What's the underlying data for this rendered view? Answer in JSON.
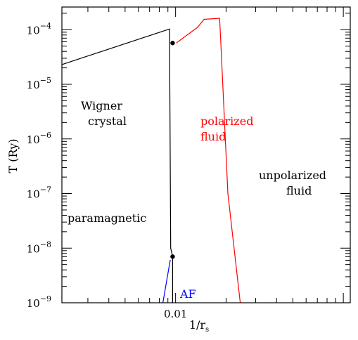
{
  "chart_data": {
    "type": "line",
    "xlabel": "1/r",
    "xlabel_sub": "s",
    "ylabel": "T (Ry)",
    "xscale": "log",
    "yscale": "log",
    "xlim": [
      0.0021,
      0.11
    ],
    "ylim": [
      1e-09,
      0.00026
    ],
    "x_tick_labels": [
      {
        "value": 0.01,
        "label": "0.01"
      }
    ],
    "y_tick_labels": [
      {
        "value": 0.0001,
        "base": "10",
        "exp": "−4"
      },
      {
        "value": 1e-05,
        "base": "10",
        "exp": "−5"
      },
      {
        "value": 1e-06,
        "base": "10",
        "exp": "−6"
      },
      {
        "value": 1e-07,
        "base": "10",
        "exp": "−7"
      },
      {
        "value": 1e-08,
        "base": "10",
        "exp": "−8"
      },
      {
        "value": 1e-09,
        "base": "10",
        "exp": "−9"
      }
    ],
    "series": [
      {
        "color": "#000000",
        "x": [
          0.0021,
          0.0092,
          0.00935,
          0.0096,
          0.0096
        ],
        "y": [
          2.3e-05,
          0.000103,
          1e-08,
          7e-09,
          1e-09
        ]
      },
      {
        "color": "#ff0000",
        "x": [
          0.0101,
          0.0135,
          0.0148,
          0.0183,
          0.0186,
          0.0205,
          0.0243
        ],
        "y": [
          5.7e-05,
          0.00011,
          0.000155,
          0.000162,
          6e-05,
          1e-07,
          1e-09
        ]
      },
      {
        "color": "#0000ff",
        "x": [
          0.0084,
          0.0093
        ],
        "y": [
          1e-09,
          6.1e-09
        ]
      }
    ],
    "points": [
      {
        "x": 0.0096,
        "y": 5.7e-05
      },
      {
        "x": 0.0096,
        "y": 7e-09
      }
    ],
    "annotations": [
      {
        "id": "wigner-1",
        "text": "Wigner",
        "color": "#000000"
      },
      {
        "id": "wigner-2",
        "text": "crystal",
        "color": "#000000"
      },
      {
        "id": "polarized-1",
        "text": "polarized",
        "color": "#ff0000"
      },
      {
        "id": "polarized-2",
        "text": "fluid",
        "color": "#ff0000"
      },
      {
        "id": "unpolarized-1",
        "text": "unpolarized",
        "color": "#000000"
      },
      {
        "id": "unpolarized-2",
        "text": "fluid",
        "color": "#000000"
      },
      {
        "id": "paramagnetic",
        "text": "paramagnetic",
        "color": "#000000"
      },
      {
        "id": "af",
        "text": "AF",
        "color": "#0000ff"
      }
    ]
  }
}
